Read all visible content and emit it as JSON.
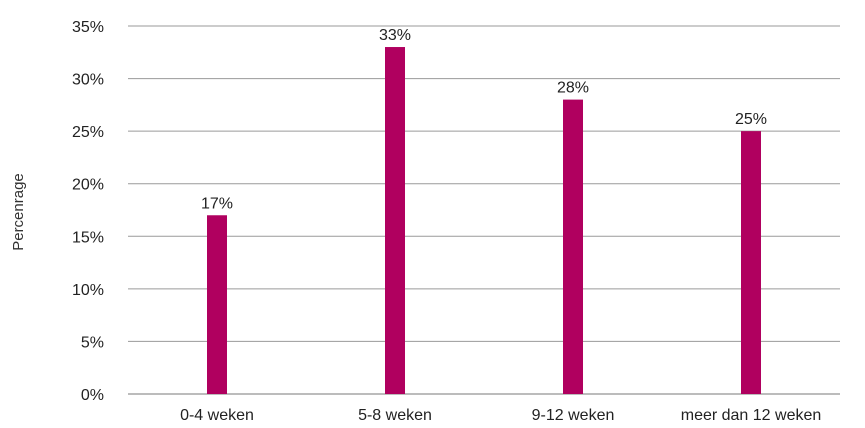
{
  "chart_data": {
    "type": "bar",
    "categories": [
      "0-4 weken",
      "5-8 weken",
      "9-12 weken",
      "meer dan 12 weken"
    ],
    "values": [
      17,
      33,
      28,
      25
    ],
    "data_labels": [
      "17%",
      "33%",
      "28%",
      "25%"
    ],
    "ylabel": "Percenrage",
    "xlabel": "",
    "ylim": [
      0,
      35
    ],
    "yticks": [
      0,
      5,
      10,
      15,
      20,
      25,
      30,
      35
    ],
    "ytick_labels": [
      "0%",
      "5%",
      "10%",
      "15%",
      "20%",
      "25%",
      "30%",
      "35%"
    ],
    "grid": true,
    "legend": "none",
    "bar_color": "#b0005f"
  }
}
